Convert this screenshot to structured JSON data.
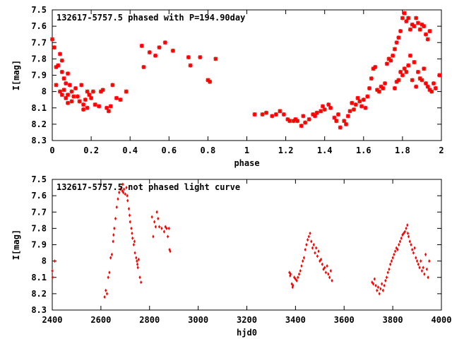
{
  "chart_data": [
    {
      "type": "scatter",
      "title": "132617-5757.5 phased with P=194.90day",
      "xlabel": "phase",
      "ylabel": "I[mag]",
      "xlim": [
        0,
        2
      ],
      "ylim": [
        7.5,
        8.3
      ],
      "y_inverted": true,
      "marker": "star",
      "color": "#ff0000",
      "xticks": [
        "0",
        "0.2",
        "0.4",
        "0.6",
        "0.8",
        "1",
        "1.2",
        "1.4",
        "1.6",
        "1.8",
        "2"
      ],
      "yticks": [
        "7.5",
        "7.6",
        "7.7",
        "7.8",
        "7.9",
        "8",
        "8.1",
        "8.2",
        "8.3"
      ],
      "xtick_values": [
        0,
        0.2,
        0.4,
        0.6,
        0.8,
        1,
        1.2,
        1.4,
        1.6,
        1.8,
        2
      ],
      "ytick_values": [
        7.5,
        7.6,
        7.7,
        7.8,
        7.9,
        8,
        8.1,
        8.2,
        8.3
      ],
      "points": [
        [
          0.0,
          7.68
        ],
        [
          0.01,
          7.73
        ],
        [
          0.02,
          7.85
        ],
        [
          0.02,
          7.96
        ],
        [
          0.03,
          7.84
        ],
        [
          0.04,
          7.77
        ],
        [
          0.05,
          7.81
        ],
        [
          0.05,
          7.88
        ],
        [
          0.06,
          7.92
        ],
        [
          0.07,
          7.95
        ],
        [
          0.08,
          7.89
        ],
        [
          0.04,
          8.0
        ],
        [
          0.05,
          8.02
        ],
        [
          0.06,
          7.99
        ],
        [
          0.07,
          8.04
        ],
        [
          0.08,
          8.02
        ],
        [
          0.09,
          7.96
        ],
        [
          0.1,
          8.0
        ],
        [
          0.08,
          8.07
        ],
        [
          0.1,
          8.06
        ],
        [
          0.11,
          8.03
        ],
        [
          0.12,
          7.98
        ],
        [
          0.13,
          8.03
        ],
        [
          0.15,
          7.96
        ],
        [
          0.14,
          8.06
        ],
        [
          0.16,
          8.08
        ],
        [
          0.17,
          8.05
        ],
        [
          0.18,
          8.0
        ],
        [
          0.16,
          8.11
        ],
        [
          0.18,
          8.1
        ],
        [
          0.19,
          8.02
        ],
        [
          0.2,
          8.04
        ],
        [
          0.21,
          8.0
        ],
        [
          0.22,
          8.08
        ],
        [
          0.24,
          8.09
        ],
        [
          0.25,
          8.0
        ],
        [
          0.26,
          7.99
        ],
        [
          0.28,
          8.1
        ],
        [
          0.29,
          8.12
        ],
        [
          0.3,
          8.09
        ],
        [
          0.31,
          7.96
        ],
        [
          0.33,
          8.04
        ],
        [
          0.35,
          8.05
        ],
        [
          0.38,
          8.0
        ],
        [
          0.46,
          7.72
        ],
        [
          0.47,
          7.85
        ],
        [
          0.5,
          7.76
        ],
        [
          0.53,
          7.78
        ],
        [
          0.55,
          7.73
        ],
        [
          0.58,
          7.7
        ],
        [
          0.62,
          7.75
        ],
        [
          0.7,
          7.79
        ],
        [
          0.71,
          7.84
        ],
        [
          0.76,
          7.79
        ],
        [
          0.8,
          7.93
        ],
        [
          0.81,
          7.94
        ],
        [
          0.84,
          7.8
        ],
        [
          1.04,
          8.14
        ],
        [
          1.08,
          8.14
        ],
        [
          1.1,
          8.13
        ],
        [
          1.13,
          8.15
        ],
        [
          1.15,
          8.14
        ],
        [
          1.17,
          8.12
        ],
        [
          1.19,
          8.14
        ],
        [
          1.21,
          8.17
        ],
        [
          1.22,
          8.18
        ],
        [
          1.24,
          8.18
        ],
        [
          1.25,
          8.17
        ],
        [
          1.26,
          8.18
        ],
        [
          1.28,
          8.21
        ],
        [
          1.29,
          8.15
        ],
        [
          1.3,
          8.19
        ],
        [
          1.32,
          8.17
        ],
        [
          1.34,
          8.14
        ],
        [
          1.35,
          8.15
        ],
        [
          1.36,
          8.13
        ],
        [
          1.38,
          8.12
        ],
        [
          1.39,
          8.09
        ],
        [
          1.4,
          8.11
        ],
        [
          1.42,
          8.08
        ],
        [
          1.43,
          8.1
        ],
        [
          1.45,
          8.16
        ],
        [
          1.46,
          8.18
        ],
        [
          1.47,
          8.14
        ],
        [
          1.48,
          8.22
        ],
        [
          1.5,
          8.18
        ],
        [
          1.51,
          8.2
        ],
        [
          1.52,
          8.15
        ],
        [
          1.53,
          8.12
        ],
        [
          1.54,
          8.07
        ],
        [
          1.55,
          8.11
        ],
        [
          1.56,
          8.08
        ],
        [
          1.57,
          8.04
        ],
        [
          1.58,
          8.06
        ],
        [
          1.59,
          8.09
        ],
        [
          1.6,
          8.05
        ],
        [
          1.61,
          8.1
        ],
        [
          1.62,
          8.03
        ],
        [
          1.63,
          7.98
        ],
        [
          1.64,
          7.92
        ],
        [
          1.65,
          7.86
        ],
        [
          1.66,
          7.85
        ],
        [
          1.67,
          7.99
        ],
        [
          1.68,
          8.0
        ],
        [
          1.69,
          7.97
        ],
        [
          1.7,
          7.98
        ],
        [
          1.71,
          7.95
        ],
        [
          1.72,
          7.83
        ],
        [
          1.73,
          7.8
        ],
        [
          1.74,
          7.81
        ],
        [
          1.75,
          7.78
        ],
        [
          1.76,
          7.74
        ],
        [
          1.77,
          7.7
        ],
        [
          1.78,
          7.67
        ],
        [
          1.79,
          7.63
        ],
        [
          1.8,
          7.55
        ],
        [
          1.81,
          7.52
        ],
        [
          1.82,
          7.57
        ],
        [
          1.83,
          7.55
        ],
        [
          1.84,
          7.62
        ],
        [
          1.85,
          7.59
        ],
        [
          1.86,
          7.6
        ],
        [
          1.87,
          7.55
        ],
        [
          1.88,
          7.58
        ],
        [
          1.89,
          7.62
        ],
        [
          1.9,
          7.59
        ],
        [
          1.91,
          7.6
        ],
        [
          1.92,
          7.65
        ],
        [
          1.93,
          7.68
        ],
        [
          1.94,
          7.63
        ],
        [
          1.76,
          7.98
        ],
        [
          1.77,
          7.94
        ],
        [
          1.78,
          7.93
        ],
        [
          1.79,
          7.88
        ],
        [
          1.8,
          7.9
        ],
        [
          1.81,
          7.86
        ],
        [
          1.82,
          7.88
        ],
        [
          1.83,
          7.84
        ],
        [
          1.84,
          7.78
        ],
        [
          1.85,
          7.93
        ],
        [
          1.86,
          7.82
        ],
        [
          1.87,
          7.97
        ],
        [
          1.88,
          7.88
        ],
        [
          1.89,
          7.92
        ],
        [
          1.9,
          7.93
        ],
        [
          1.91,
          7.86
        ],
        [
          1.92,
          7.95
        ],
        [
          1.93,
          7.97
        ],
        [
          1.94,
          7.99
        ],
        [
          1.95,
          8.0
        ],
        [
          1.96,
          7.95
        ],
        [
          1.97,
          7.98
        ],
        [
          1.99,
          7.9
        ]
      ]
    },
    {
      "type": "scatter",
      "title": "132617-5757.5 not phased light curve",
      "xlabel": "hjd0",
      "ylabel": "I[mag]",
      "xlim": [
        2400,
        4000
      ],
      "ylim": [
        7.5,
        8.3
      ],
      "y_inverted": true,
      "marker": "diamond",
      "color": "#ff0000",
      "xticks": [
        "2400",
        "2600",
        "2800",
        "3000",
        "3200",
        "3400",
        "3600",
        "3800",
        "4000"
      ],
      "yticks": [
        "7.5",
        "7.6",
        "7.7",
        "7.8",
        "7.9",
        "8",
        "8.1",
        "8.2",
        "8.3"
      ],
      "xtick_values": [
        2400,
        2600,
        2800,
        3000,
        3200,
        3400,
        3600,
        3800,
        4000
      ],
      "ytick_values": [
        7.5,
        7.6,
        7.7,
        7.8,
        7.9,
        8,
        8.1,
        8.2,
        8.3
      ],
      "points": [
        [
          2400,
          8.06
        ],
        [
          2401,
          8.1
        ],
        [
          2410,
          8.0
        ],
        [
          2615,
          8.22
        ],
        [
          2620,
          8.18
        ],
        [
          2625,
          8.2
        ],
        [
          2630,
          8.1
        ],
        [
          2635,
          8.07
        ],
        [
          2640,
          7.98
        ],
        [
          2645,
          7.96
        ],
        [
          2650,
          7.88
        ],
        [
          2652,
          7.84
        ],
        [
          2655,
          7.8
        ],
        [
          2660,
          7.74
        ],
        [
          2665,
          7.67
        ],
        [
          2670,
          7.62
        ],
        [
          2675,
          7.58
        ],
        [
          2680,
          7.56
        ],
        [
          2685,
          7.55
        ],
        [
          2688,
          7.57
        ],
        [
          2690,
          7.53
        ],
        [
          2692,
          7.58
        ],
        [
          2695,
          7.56
        ],
        [
          2700,
          7.59
        ],
        [
          2705,
          7.55
        ],
        [
          2708,
          7.6
        ],
        [
          2710,
          7.63
        ],
        [
          2715,
          7.68
        ],
        [
          2718,
          7.72
        ],
        [
          2720,
          7.76
        ],
        [
          2725,
          7.8
        ],
        [
          2728,
          7.83
        ],
        [
          2730,
          7.86
        ],
        [
          2735,
          7.9
        ],
        [
          2738,
          7.88
        ],
        [
          2740,
          7.95
        ],
        [
          2745,
          7.98
        ],
        [
          2748,
          8.0
        ],
        [
          2750,
          8.02
        ],
        [
          2752,
          8.04
        ],
        [
          2755,
          7.99
        ],
        [
          2760,
          8.1
        ],
        [
          2765,
          8.13
        ],
        [
          2810,
          7.73
        ],
        [
          2815,
          7.85
        ],
        [
          2820,
          7.76
        ],
        [
          2825,
          7.79
        ],
        [
          2830,
          7.7
        ],
        [
          2835,
          7.74
        ],
        [
          2840,
          7.79
        ],
        [
          2850,
          7.8
        ],
        [
          2860,
          7.82
        ],
        [
          2865,
          7.79
        ],
        [
          2870,
          7.8
        ],
        [
          2875,
          7.85
        ],
        [
          2880,
          7.8
        ],
        [
          2882,
          7.93
        ],
        [
          2885,
          7.94
        ],
        [
          3375,
          8.07
        ],
        [
          3378,
          8.09
        ],
        [
          3380,
          8.08
        ],
        [
          3385,
          8.14
        ],
        [
          3388,
          8.16
        ],
        [
          3390,
          8.15
        ],
        [
          3395,
          8.1
        ],
        [
          3400,
          8.11
        ],
        [
          3405,
          8.12
        ],
        [
          3410,
          8.1
        ],
        [
          3415,
          8.08
        ],
        [
          3420,
          8.06
        ],
        [
          3425,
          8.03
        ],
        [
          3430,
          8.0
        ],
        [
          3435,
          7.98
        ],
        [
          3440,
          7.93
        ],
        [
          3445,
          7.9
        ],
        [
          3450,
          7.87
        ],
        [
          3455,
          7.85
        ],
        [
          3460,
          7.83
        ],
        [
          3465,
          7.88
        ],
        [
          3470,
          7.92
        ],
        [
          3475,
          7.9
        ],
        [
          3480,
          7.95
        ],
        [
          3485,
          7.92
        ],
        [
          3490,
          7.97
        ],
        [
          3495,
          7.94
        ],
        [
          3500,
          8.0
        ],
        [
          3505,
          7.99
        ],
        [
          3510,
          8.02
        ],
        [
          3515,
          8.05
        ],
        [
          3520,
          8.04
        ],
        [
          3525,
          8.07
        ],
        [
          3530,
          8.03
        ],
        [
          3535,
          8.08
        ],
        [
          3540,
          8.1
        ],
        [
          3545,
          8.06
        ],
        [
          3550,
          8.12
        ],
        [
          3715,
          8.13
        ],
        [
          3720,
          8.14
        ],
        [
          3725,
          8.11
        ],
        [
          3730,
          8.15
        ],
        [
          3735,
          8.18
        ],
        [
          3740,
          8.16
        ],
        [
          3745,
          8.2
        ],
        [
          3750,
          8.17
        ],
        [
          3755,
          8.14
        ],
        [
          3760,
          8.18
        ],
        [
          3765,
          8.15
        ],
        [
          3770,
          8.12
        ],
        [
          3775,
          8.1
        ],
        [
          3780,
          8.07
        ],
        [
          3785,
          8.05
        ],
        [
          3790,
          8.02
        ],
        [
          3795,
          8.0
        ],
        [
          3800,
          7.98
        ],
        [
          3805,
          7.96
        ],
        [
          3810,
          7.94
        ],
        [
          3815,
          7.92
        ],
        [
          3820,
          7.93
        ],
        [
          3825,
          7.9
        ],
        [
          3830,
          7.88
        ],
        [
          3835,
          7.86
        ],
        [
          3840,
          7.84
        ],
        [
          3845,
          7.83
        ],
        [
          3850,
          7.82
        ],
        [
          3855,
          7.8
        ],
        [
          3860,
          7.78
        ],
        [
          3862,
          7.83
        ],
        [
          3865,
          7.85
        ],
        [
          3870,
          7.88
        ],
        [
          3875,
          7.9
        ],
        [
          3880,
          7.93
        ],
        [
          3885,
          7.95
        ],
        [
          3890,
          7.92
        ],
        [
          3895,
          7.98
        ],
        [
          3900,
          8.0
        ],
        [
          3905,
          8.02
        ],
        [
          3910,
          8.04
        ],
        [
          3915,
          8.0
        ],
        [
          3920,
          8.06
        ],
        [
          3925,
          8.04
        ],
        [
          3930,
          8.08
        ],
        [
          3935,
          7.96
        ],
        [
          3940,
          8.05
        ],
        [
          3945,
          8.1
        ],
        [
          3950,
          8.0
        ]
      ]
    }
  ]
}
